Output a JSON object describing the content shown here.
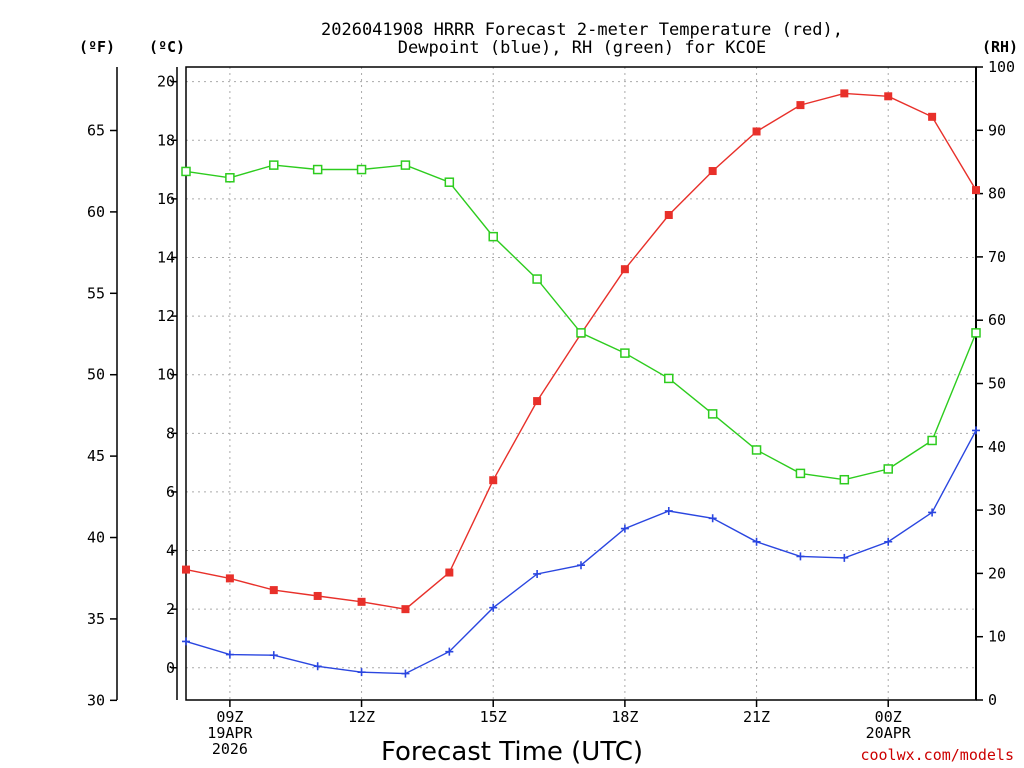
{
  "chart_data": {
    "type": "line",
    "title": [
      "2026041908 HRRR Forecast 2-meter Temperature (red),",
      "Dewpoint (blue), RH (green) for KCOE"
    ],
    "xlabel": "Forecast Time (UTC)",
    "credit": "coolwx.com/models",
    "units": {
      "fahrenheit": "(ºF)",
      "celsius": "(ºC)",
      "rh": "(RH)"
    },
    "x_hours": [
      8,
      9,
      10,
      11,
      12,
      13,
      14,
      15,
      16,
      17,
      18,
      19,
      20,
      21,
      22,
      23,
      24,
      25,
      26
    ],
    "x_range": [
      8,
      26
    ],
    "x_ticks": [
      {
        "hour": 9,
        "lines": [
          "09Z",
          "19APR",
          "2026"
        ]
      },
      {
        "hour": 12,
        "lines": [
          "12Z"
        ]
      },
      {
        "hour": 15,
        "lines": [
          "15Z"
        ]
      },
      {
        "hour": 18,
        "lines": [
          "18Z"
        ]
      },
      {
        "hour": 21,
        "lines": [
          "21Z"
        ]
      },
      {
        "hour": 24,
        "lines": [
          "00Z",
          "20APR"
        ]
      }
    ],
    "celsius_axis": {
      "range": [
        -1.1,
        20.5
      ],
      "ticks": [
        0,
        2,
        4,
        6,
        8,
        10,
        12,
        14,
        16,
        18,
        20
      ]
    },
    "fahrenheit_axis": {
      "ticks": [
        30,
        35,
        40,
        45,
        50,
        55,
        60,
        65
      ]
    },
    "rh_axis": {
      "range": [
        0,
        100
      ],
      "ticks": [
        0,
        10,
        20,
        30,
        40,
        50,
        60,
        70,
        80,
        90,
        100
      ]
    },
    "series": [
      {
        "name": "Temperature",
        "unit": "C",
        "color": "#e8302a",
        "marker": "filled-square",
        "values": [
          3.35,
          3.05,
          2.65,
          2.45,
          2.25,
          2.0,
          3.25,
          6.4,
          9.1,
          11.4,
          13.6,
          15.45,
          16.95,
          18.3,
          19.2,
          19.6,
          19.5,
          18.8,
          16.3
        ]
      },
      {
        "name": "Dewpoint",
        "unit": "C",
        "color": "#2a46e0",
        "marker": "plus",
        "values": [
          0.9,
          0.45,
          0.43,
          0.05,
          -0.15,
          -0.2,
          0.55,
          2.05,
          3.2,
          3.5,
          4.75,
          5.35,
          5.1,
          4.3,
          3.8,
          3.75,
          4.3,
          5.3,
          8.1
        ]
      },
      {
        "name": "Relative Humidity",
        "unit": "%",
        "color": "#2dcc1e",
        "marker": "open-square",
        "values": [
          83.5,
          82.5,
          84.5,
          83.8,
          83.8,
          84.5,
          81.8,
          73.2,
          66.5,
          58.0,
          54.8,
          50.8,
          45.2,
          39.5,
          35.8,
          34.8,
          36.5,
          41.0,
          58.0
        ]
      }
    ],
    "grid": true
  }
}
